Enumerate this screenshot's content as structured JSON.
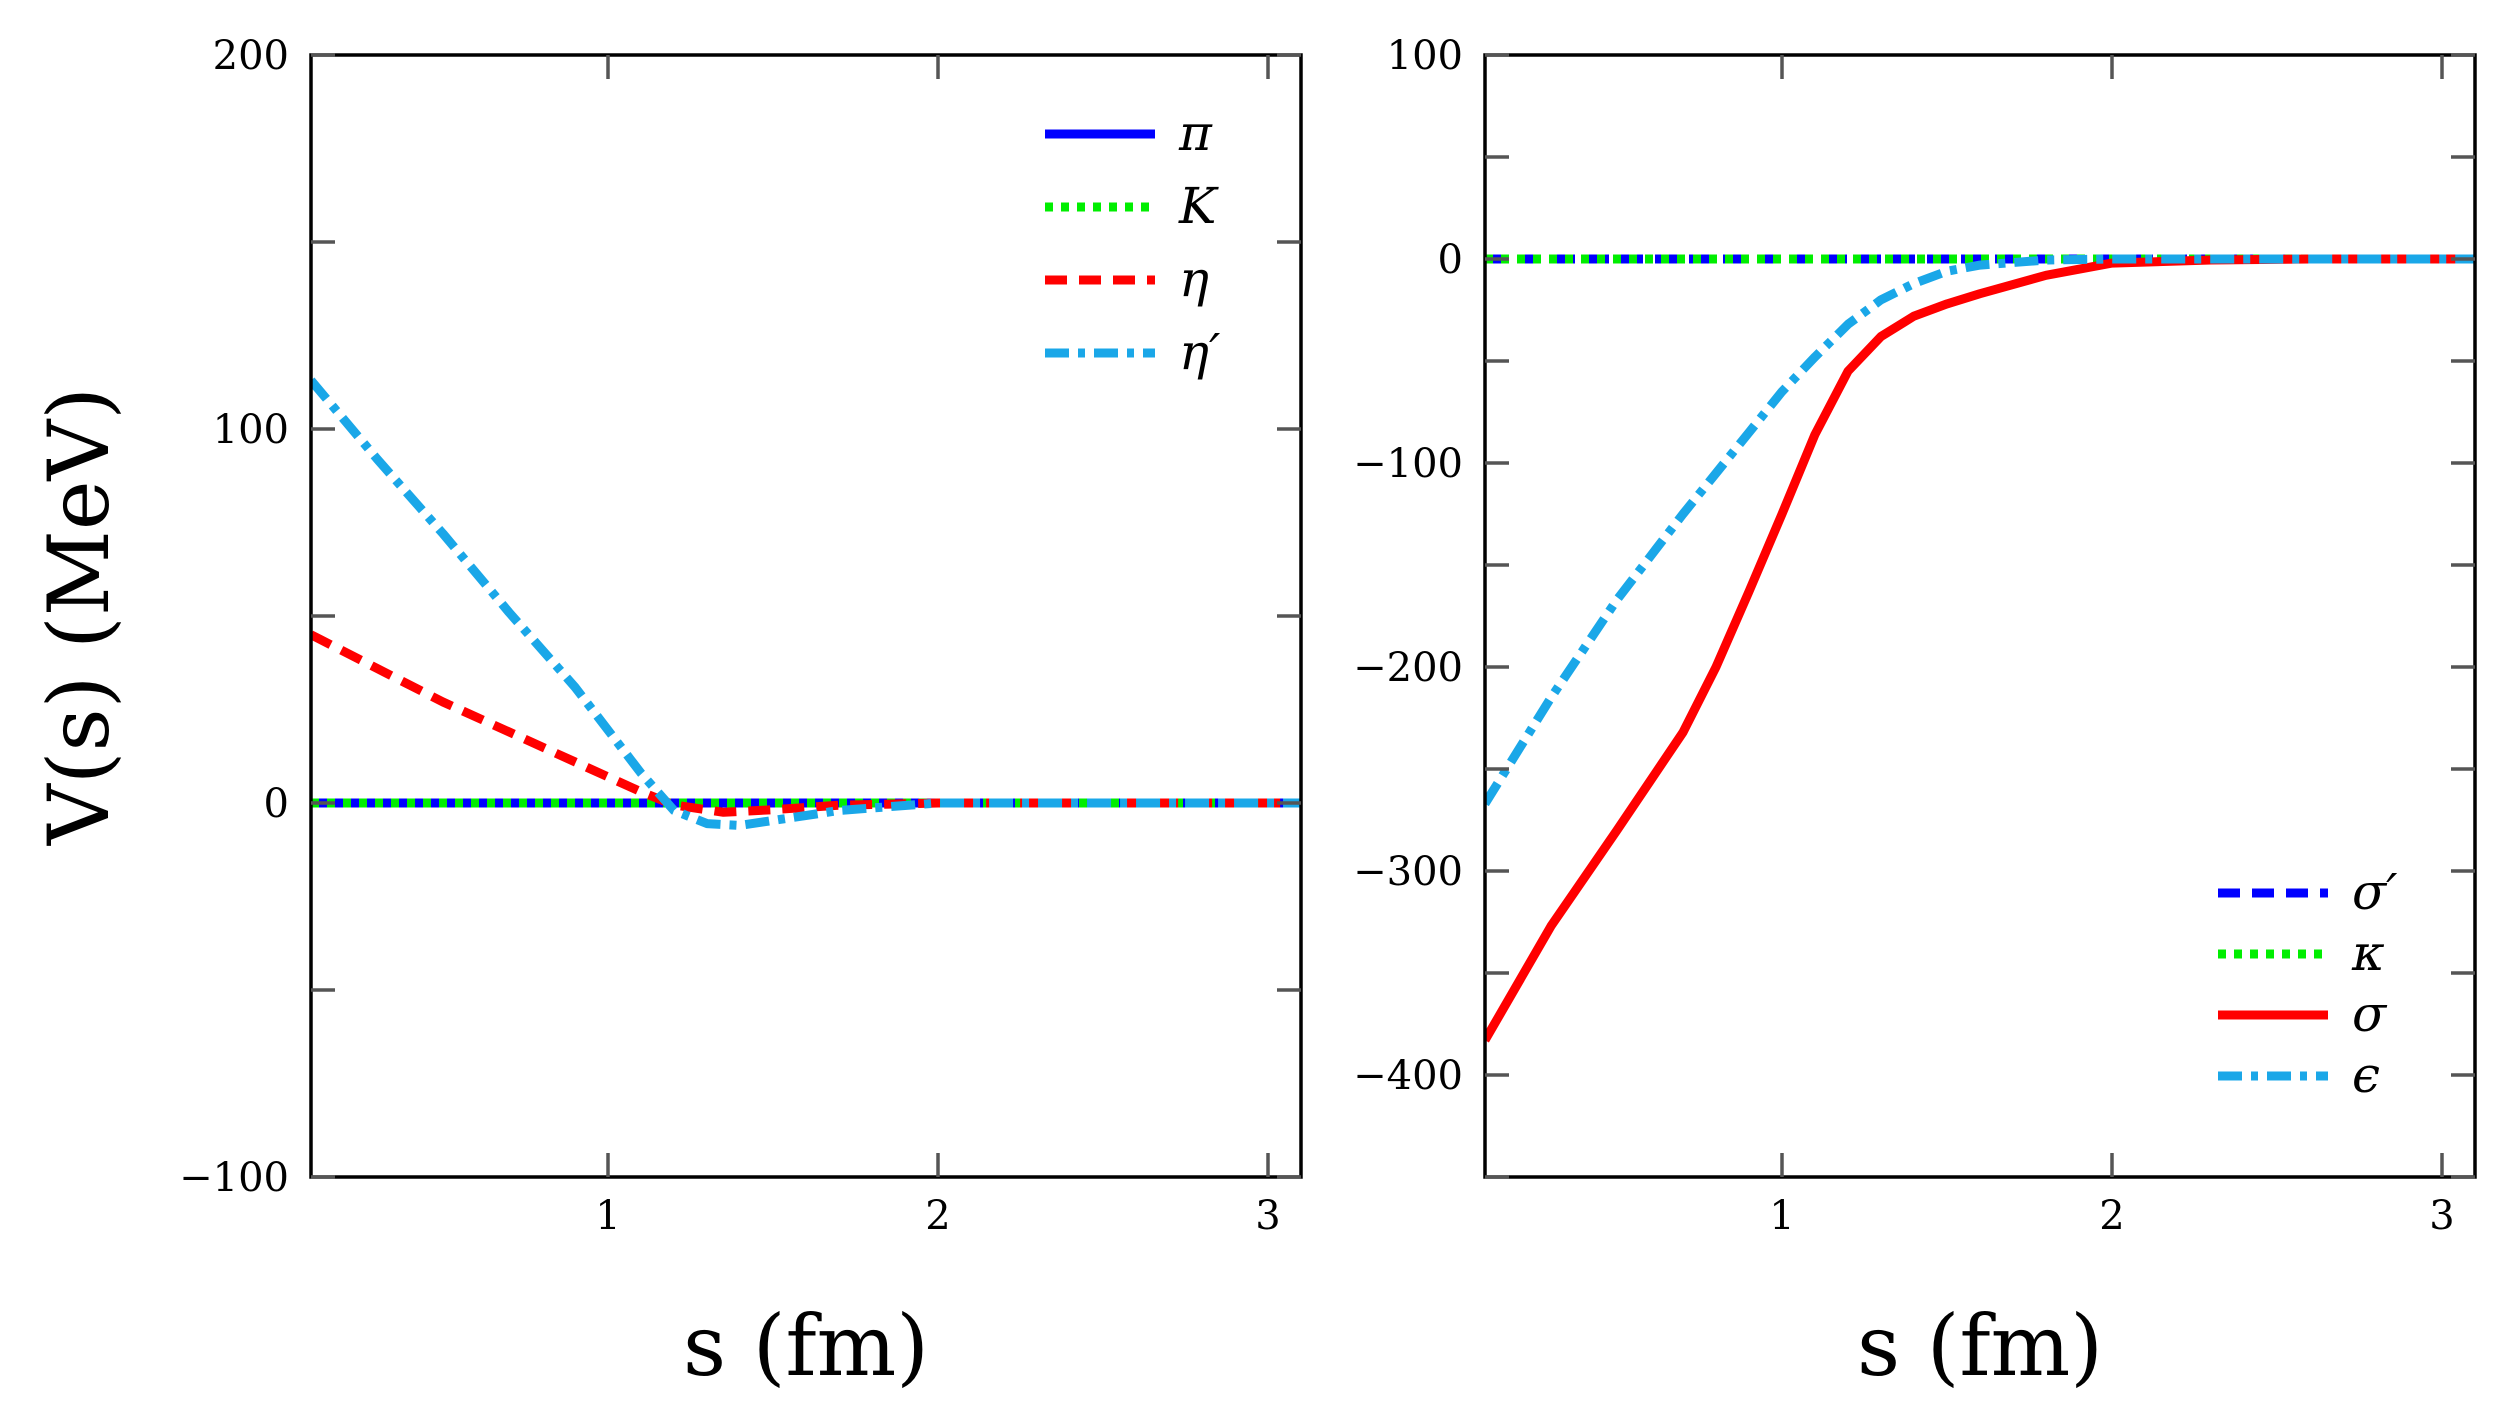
{
  "chart_data": [
    {
      "type": "line",
      "title": "",
      "xlabel": "s (fm)",
      "ylabel": "V(s) (MeV)",
      "xlim": [
        0.1,
        3.1
      ],
      "ylim": [
        -100,
        200
      ],
      "xticks": [
        1,
        2,
        3
      ],
      "xtick_labels": [
        "1",
        "2",
        "3"
      ],
      "yticks": [
        -100,
        0,
        100,
        200
      ],
      "ytick_labels": [
        "−100",
        "0",
        "100",
        "200"
      ],
      "legend_position": "top-right",
      "series": [
        {
          "name": "π",
          "color": "#0000ff",
          "style": "solid",
          "x": [
            0.1,
            0.5,
            1.0,
            1.5,
            2.0,
            2.5,
            3.1
          ],
          "y": [
            0,
            0,
            0,
            0,
            0,
            0,
            0
          ]
        },
        {
          "name": "K",
          "color": "#00ee00",
          "style": "dotted",
          "x": [
            0.1,
            0.5,
            1.0,
            1.5,
            2.0,
            2.5,
            3.1
          ],
          "y": [
            0,
            0,
            0,
            0,
            0,
            0,
            0
          ]
        },
        {
          "name": "η",
          "color": "#ff0000",
          "style": "dashed",
          "x": [
            0.1,
            0.3,
            0.5,
            0.7,
            0.9,
            1.1,
            1.2,
            1.35,
            1.5,
            1.7,
            2.0,
            2.5,
            3.1
          ],
          "y": [
            45,
            36,
            27,
            19,
            11,
            3,
            -0.5,
            -2.5,
            -1.8,
            -0.6,
            0,
            0,
            0
          ]
        },
        {
          "name": "η′",
          "color": "#1aa7e8",
          "style": "dashdot",
          "x": [
            0.1,
            0.3,
            0.5,
            0.7,
            0.9,
            1.1,
            1.2,
            1.3,
            1.4,
            1.55,
            1.7,
            2.0,
            2.5,
            3.1
          ],
          "y": [
            113,
            92,
            72,
            51,
            31,
            8,
            -2,
            -5.5,
            -6,
            -4,
            -2,
            0,
            0,
            0
          ]
        }
      ]
    },
    {
      "type": "line",
      "title": "",
      "xlabel": "s (fm)",
      "ylabel": "",
      "xlim": [
        0.1,
        3.1
      ],
      "ylim": [
        -450,
        100
      ],
      "xticks": [
        1,
        2,
        3
      ],
      "xtick_labels": [
        "1",
        "2",
        "3"
      ],
      "yticks": [
        -400,
        -300,
        -200,
        -100,
        0,
        100
      ],
      "ytick_labels": [
        "−400",
        "−300",
        "−200",
        "−100",
        "0",
        "100"
      ],
      "legend_position": "bottom-right",
      "series": [
        {
          "name": "σ′",
          "color": "#0000ff",
          "style": "dashed",
          "x": [
            0.1,
            0.5,
            1.0,
            1.5,
            2.0,
            2.5,
            3.1
          ],
          "y": [
            0,
            0,
            0,
            0,
            0,
            0,
            0
          ]
        },
        {
          "name": "κ",
          "color": "#00ee00",
          "style": "dotted",
          "x": [
            0.1,
            0.5,
            1.0,
            1.5,
            2.0,
            2.5,
            3.1
          ],
          "y": [
            0,
            0,
            0,
            0,
            0,
            0,
            0
          ]
        },
        {
          "name": "σ",
          "color": "#ff0000",
          "style": "solid",
          "x": [
            0.1,
            0.3,
            0.5,
            0.7,
            0.8,
            0.9,
            1.0,
            1.1,
            1.2,
            1.3,
            1.4,
            1.5,
            1.6,
            1.8,
            2.0,
            2.3,
            2.6,
            3.1
          ],
          "y": [
            -383,
            -327,
            -280,
            -232,
            -200,
            -163,
            -125,
            -86,
            -55,
            -38,
            -28,
            -22,
            -17,
            -8,
            -2,
            -0.5,
            0,
            0
          ]
        },
        {
          "name": "ϵ",
          "color": "#1aa7e8",
          "style": "dashdot",
          "x": [
            0.1,
            0.3,
            0.5,
            0.7,
            0.9,
            1.0,
            1.1,
            1.2,
            1.3,
            1.4,
            1.5,
            1.6,
            1.8,
            2.0,
            2.5,
            3.1
          ],
          "y": [
            -267,
            -215,
            -167,
            -125,
            -85,
            -65,
            -48,
            -32,
            -20,
            -12,
            -6,
            -3,
            -0.5,
            0,
            0,
            0
          ]
        }
      ]
    }
  ]
}
